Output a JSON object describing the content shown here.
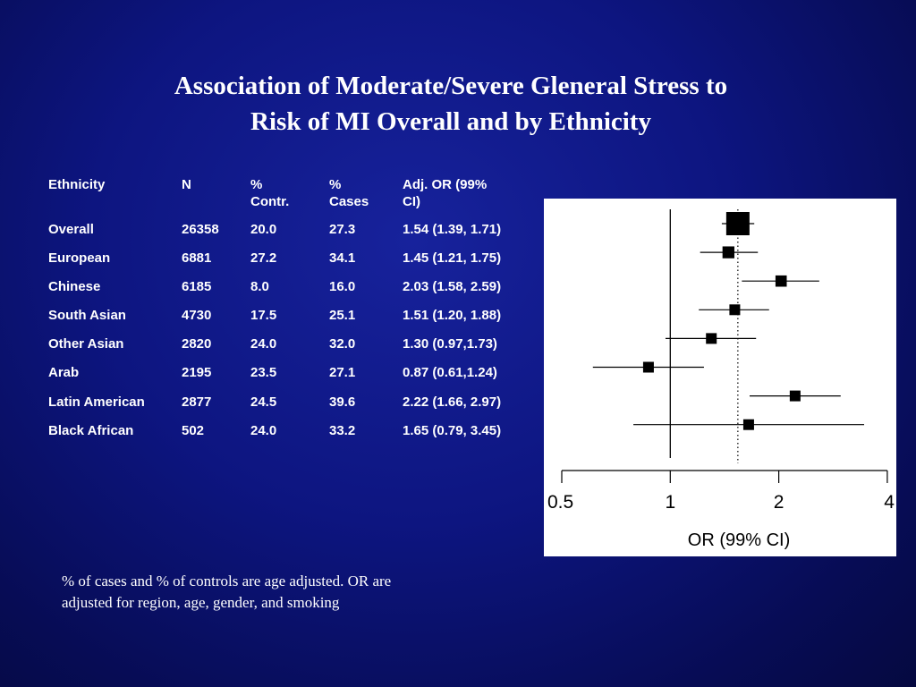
{
  "slide": {
    "title_line1": "Association of Moderate/Severe Gleneral Stress to",
    "title_line2": "Risk of MI Overall and by Ethnicity",
    "footnote_line1": "% of cases and % of controls are age adjusted.  OR are",
    "footnote_line2": "adjusted for region, age, gender, and smoking"
  },
  "table": {
    "headers": {
      "ethnicity": "Ethnicity",
      "n": "N",
      "contr_1": "%",
      "contr_2": "Contr.",
      "cases_1": "%",
      "cases_2": "Cases",
      "or_1": "Adj. OR (99%",
      "or_2": "CI)"
    },
    "rows": [
      {
        "ethnicity": "Overall",
        "n": "26358",
        "contr": "20.0",
        "cases": "27.3",
        "or": "1.54 (1.39, 1.71)"
      },
      {
        "ethnicity": "European",
        "n": "6881",
        "contr": "27.2",
        "cases": "34.1",
        "or": "1.45 (1.21, 1.75)"
      },
      {
        "ethnicity": "Chinese",
        "n": "6185",
        "contr": "8.0",
        "cases": "16.0",
        "or": "2.03 (1.58, 2.59)"
      },
      {
        "ethnicity": "South Asian",
        "n": "4730",
        "contr": "17.5",
        "cases": "25.1",
        "or": "1.51 (1.20, 1.88)"
      },
      {
        "ethnicity": "Other Asian",
        "n": "2820",
        "contr": "24.0",
        "cases": "32.0",
        "or": "1.30 (0.97,1.73)"
      },
      {
        "ethnicity": "Arab",
        "n": "2195",
        "contr": "23.5",
        "cases": "27.1",
        "or": "0.87 (0.61,1.24)"
      },
      {
        "ethnicity": "Latin American",
        "n": "2877",
        "contr": "24.5",
        "cases": "39.6",
        "or": "2.22 (1.66, 2.97)"
      },
      {
        "ethnicity": "Black African",
        "n": "502",
        "contr": "24.0",
        "cases": "33.2",
        "or": "1.65 (0.79, 3.45)"
      }
    ]
  },
  "chart_data": {
    "type": "scatter",
    "subtype": "forest",
    "xlabel": "OR (99% CI)",
    "xscale": "log",
    "xlim": [
      0.5,
      4
    ],
    "xticks": [
      0.5,
      1,
      2,
      4
    ],
    "xtick_labels": [
      "0.5",
      "1",
      "2",
      "4"
    ],
    "reference_line": 1,
    "overall_line": 1.54,
    "categories": [
      "Overall",
      "European",
      "Chinese",
      "South Asian",
      "Other Asian",
      "Arab",
      "Latin American",
      "Black African"
    ],
    "or": [
      1.54,
      1.45,
      2.03,
      1.51,
      1.3,
      0.87,
      2.22,
      1.65
    ],
    "ci_low": [
      1.39,
      1.21,
      1.58,
      1.2,
      0.97,
      0.61,
      1.66,
      0.79
    ],
    "ci_high": [
      1.71,
      1.75,
      2.59,
      1.88,
      1.73,
      1.24,
      2.97,
      3.45
    ],
    "weight_n": [
      26358,
      6881,
      6185,
      4730,
      2820,
      2195,
      2877,
      502
    ],
    "marker_color": "#000000",
    "background": "#ffffff"
  }
}
